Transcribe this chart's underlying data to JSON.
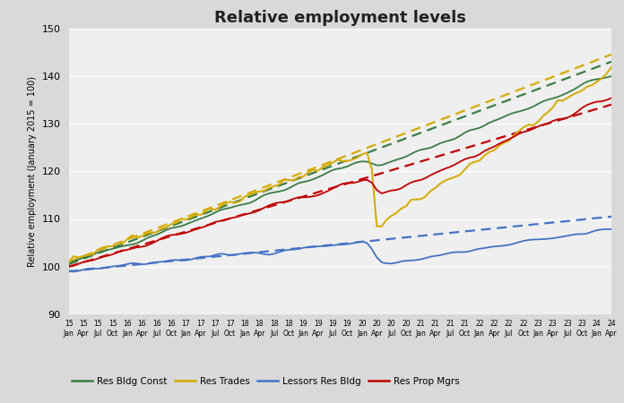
{
  "title": "Relative employment levels",
  "ylabel": "Relative employment (January 2015 = 100)",
  "ylim": [
    90,
    150
  ],
  "yticks": [
    90,
    100,
    110,
    120,
    130,
    140,
    150
  ],
  "colors": {
    "res_bldg_const": "#3a7d44",
    "res_trades": "#d4aa00",
    "lessors_res_bldg": "#4472c4",
    "res_prop_mgrs": "#c00000"
  },
  "background_color": "#d9d9d9",
  "plot_bg_color": "#efefef",
  "legend": [
    "Res Bldg Const",
    "Res Trades",
    "Lessors Res Bldg",
    "Res Prop Mgrs"
  ]
}
